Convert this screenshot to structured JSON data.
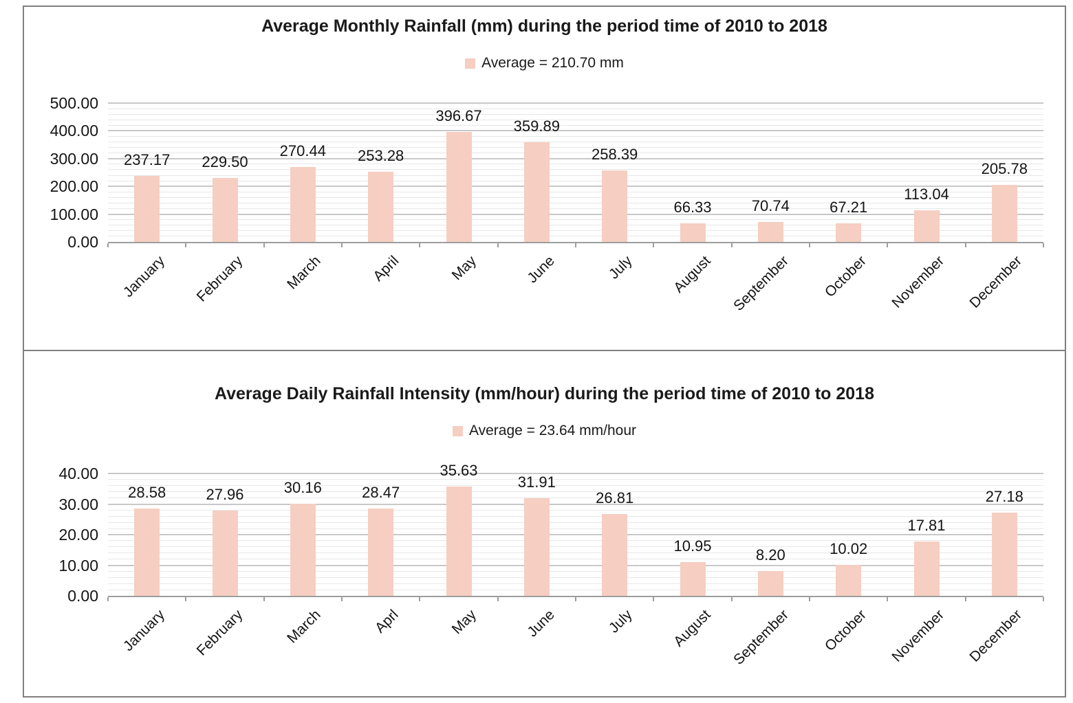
{
  "colors": {
    "bar_fill": "#f6cec2",
    "gridline_minor": "#e7e7e7",
    "gridline_major": "#c8c8c8",
    "axis_line": "#9d9d9d",
    "panel_border": "#7f7f7f"
  },
  "chart_data": [
    {
      "type": "bar",
      "title": "Average Monthly Rainfall (mm) during the period time of 2010 to 2018",
      "legend": [
        "Average = 210.70 mm"
      ],
      "legend_position": "top-center",
      "categories": [
        "January",
        "February",
        "March",
        "April",
        "May",
        "June",
        "July",
        "August",
        "September",
        "October",
        "November",
        "December"
      ],
      "values": [
        237.17,
        229.5,
        270.44,
        253.28,
        396.67,
        359.89,
        258.39,
        66.33,
        70.74,
        67.21,
        113.04,
        205.78
      ],
      "xlabel": "",
      "ylabel": "",
      "ylim": [
        0,
        500
      ],
      "ytick_step": 100,
      "minor_gridline_step": 20,
      "ytick_decimals": 2,
      "value_label_decimals": 2,
      "grid": true,
      "bar_color": "#f6cec2"
    },
    {
      "type": "bar",
      "title": "Average Daily Rainfall Intensity (mm/hour) during the period time of 2010 to 2018",
      "legend": [
        "Average = 23.64 mm/hour"
      ],
      "legend_position": "top-center",
      "categories": [
        "January",
        "February",
        "March",
        "Aprl",
        "May",
        "June",
        "July",
        "August",
        "September",
        "October",
        "November",
        "December"
      ],
      "values": [
        28.58,
        27.96,
        30.16,
        28.47,
        35.63,
        31.91,
        26.81,
        10.95,
        8.2,
        10.02,
        17.81,
        27.18
      ],
      "xlabel": "",
      "ylabel": "",
      "ylim": [
        0,
        40
      ],
      "ytick_step": 10,
      "minor_gridline_step": 2,
      "ytick_decimals": 2,
      "value_label_decimals": 2,
      "grid": true,
      "bar_color": "#f6cec2"
    }
  ]
}
